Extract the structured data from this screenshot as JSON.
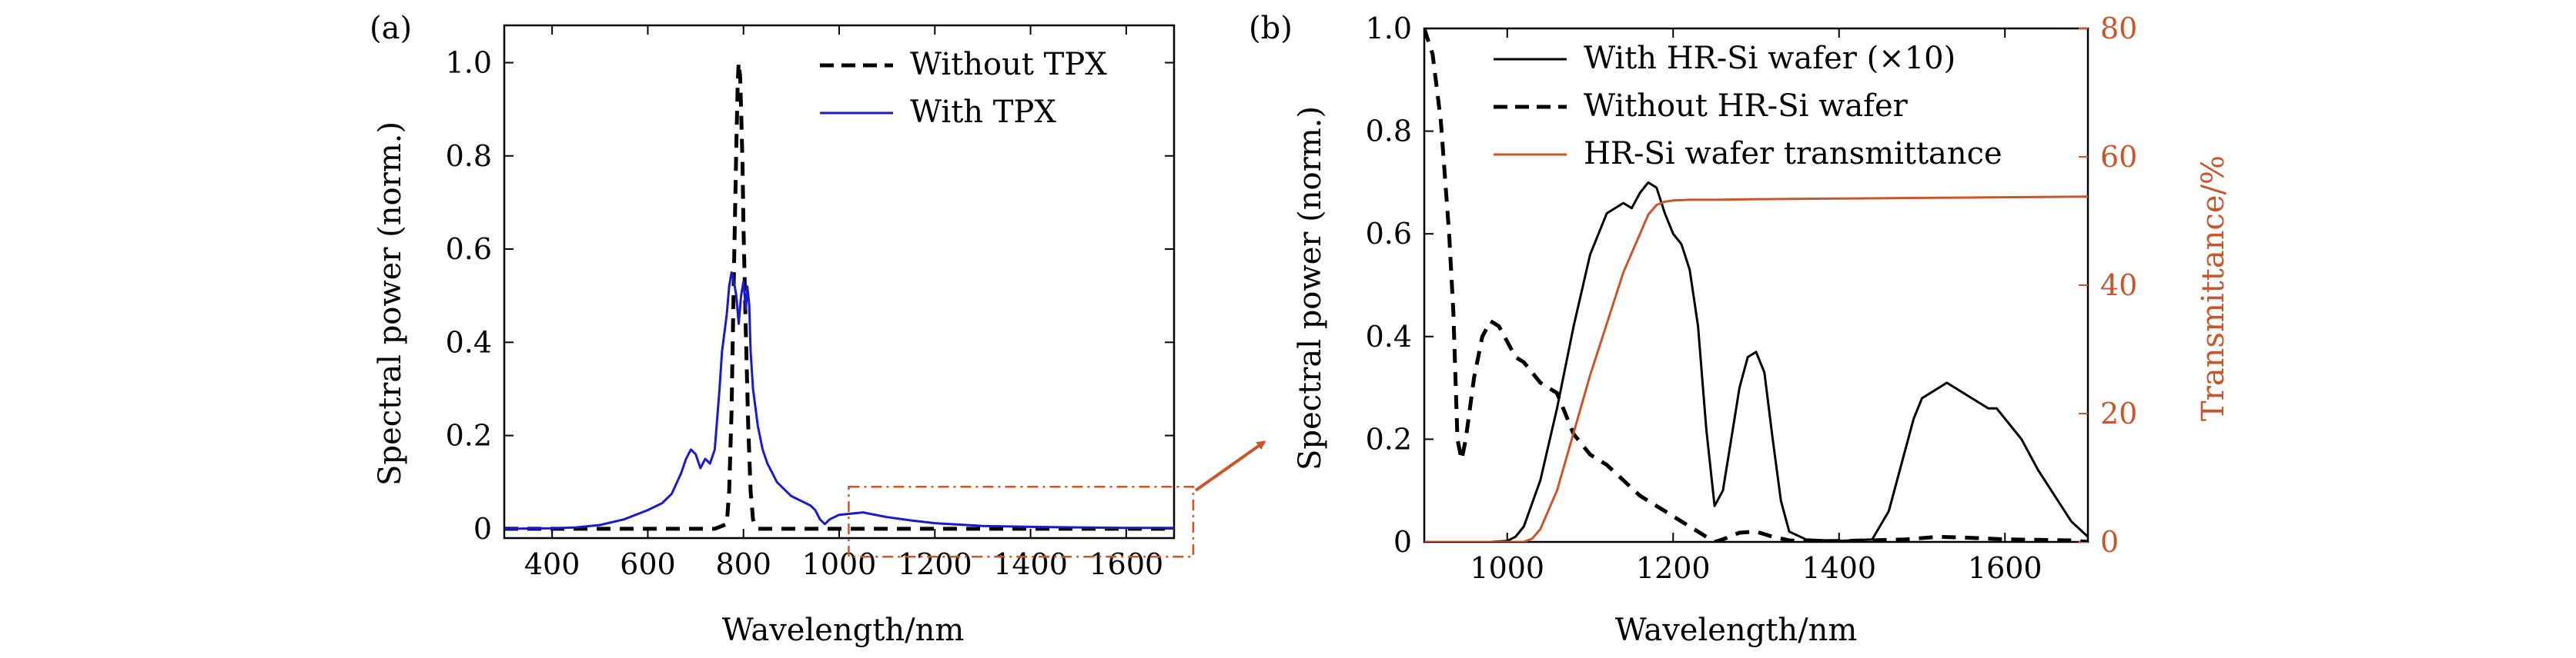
{
  "colors": {
    "black": "#000000",
    "blue": "#1a1acc",
    "orange": "#c8552b",
    "axis": "#000000"
  },
  "chart_data": [
    {
      "panel_label": "(a)",
      "type": "line",
      "xlabel": "Wavelength/nm",
      "ylabel": "Spectral power (norm.)",
      "xlim": [
        300,
        1700
      ],
      "ylim": [
        -0.02,
        1.08
      ],
      "xticks": [
        400,
        600,
        800,
        1000,
        1200,
        1400,
        1600
      ],
      "xtick_labels": [
        "400",
        "600",
        "800",
        "1000",
        "1200",
        "1400",
        "1600"
      ],
      "yticks": [
        0,
        0.2,
        0.4,
        0.6,
        0.8,
        1.0
      ],
      "ytick_labels": [
        "0",
        "0.2",
        "0.4",
        "0.6",
        "0.8",
        "1.0"
      ],
      "legend": "top-right",
      "zoom_region": {
        "x": [
          1020,
          1740
        ],
        "y": [
          -0.06,
          0.09
        ]
      },
      "series": [
        {
          "name": "Without TPX",
          "style": "dashed",
          "color": "black",
          "x": [
            300,
            740,
            765,
            770,
            775,
            780,
            785,
            788,
            790,
            793,
            795,
            798,
            800,
            805,
            810,
            815,
            820,
            825,
            830,
            900,
            1700
          ],
          "y": [
            0,
            0,
            0.01,
            0.08,
            0.25,
            0.55,
            0.82,
            0.96,
            1.0,
            0.97,
            0.9,
            0.78,
            0.65,
            0.42,
            0.22,
            0.08,
            0.02,
            0.005,
            0,
            0,
            0
          ]
        },
        {
          "name": "With TPX",
          "style": "solid",
          "color": "blue",
          "x": [
            300,
            400,
            450,
            500,
            550,
            600,
            630,
            650,
            670,
            680,
            690,
            700,
            710,
            720,
            730,
            740,
            750,
            755,
            760,
            765,
            770,
            775,
            780,
            785,
            790,
            795,
            800,
            805,
            808,
            812,
            815,
            820,
            830,
            840,
            850,
            860,
            870,
            880,
            890,
            900,
            910,
            920,
            930,
            940,
            950,
            960,
            970,
            980,
            1000,
            1050,
            1100,
            1150,
            1200,
            1300,
            1400,
            1500,
            1600,
            1700
          ],
          "y": [
            0,
            0.001,
            0.003,
            0.008,
            0.02,
            0.04,
            0.055,
            0.075,
            0.12,
            0.15,
            0.17,
            0.16,
            0.13,
            0.15,
            0.14,
            0.17,
            0.3,
            0.38,
            0.42,
            0.46,
            0.52,
            0.55,
            0.53,
            0.5,
            0.44,
            0.5,
            0.53,
            0.47,
            0.52,
            0.48,
            0.38,
            0.3,
            0.22,
            0.17,
            0.14,
            0.12,
            0.1,
            0.09,
            0.08,
            0.07,
            0.065,
            0.06,
            0.055,
            0.05,
            0.04,
            0.02,
            0.01,
            0.02,
            0.03,
            0.035,
            0.025,
            0.018,
            0.012,
            0.006,
            0.004,
            0.003,
            0.002,
            0.002
          ]
        }
      ]
    },
    {
      "panel_label": "(b)",
      "type": "line",
      "xlabel": "Wavelength/nm",
      "ylabel": "Spectral power (norm.)",
      "y2label": "Transmittance/%",
      "xlim": [
        900,
        1700
      ],
      "ylim": [
        0,
        1.0
      ],
      "y2lim": [
        0,
        80
      ],
      "xticks": [
        1000,
        1200,
        1400,
        1600
      ],
      "xtick_labels": [
        "1000",
        "1200",
        "1400",
        "1600"
      ],
      "yticks": [
        0,
        0.2,
        0.4,
        0.6,
        0.8,
        1.0
      ],
      "ytick_labels": [
        "0",
        "0.2",
        "0.4",
        "0.6",
        "0.8",
        "1.0"
      ],
      "y2ticks": [
        0,
        20,
        40,
        60,
        80
      ],
      "y2tick_labels": [
        "0",
        "20",
        "40",
        "60",
        "80"
      ],
      "legend": "top-right",
      "series": [
        {
          "name": "With HR-Si wafer (×10)",
          "style": "solid",
          "color": "black",
          "axis": "left",
          "x": [
            900,
            980,
            1000,
            1010,
            1020,
            1040,
            1060,
            1080,
            1100,
            1120,
            1140,
            1150,
            1160,
            1170,
            1180,
            1190,
            1200,
            1210,
            1220,
            1230,
            1240,
            1250,
            1260,
            1270,
            1280,
            1290,
            1300,
            1310,
            1320,
            1330,
            1340,
            1360,
            1400,
            1440,
            1460,
            1480,
            1490,
            1500,
            1510,
            1520,
            1530,
            1540,
            1550,
            1560,
            1570,
            1580,
            1590,
            1600,
            1620,
            1640,
            1660,
            1680,
            1700
          ],
          "y": [
            0,
            0,
            0.002,
            0.01,
            0.03,
            0.12,
            0.26,
            0.42,
            0.56,
            0.64,
            0.66,
            0.65,
            0.68,
            0.7,
            0.69,
            0.64,
            0.6,
            0.58,
            0.53,
            0.42,
            0.22,
            0.07,
            0.1,
            0.2,
            0.3,
            0.36,
            0.37,
            0.33,
            0.2,
            0.08,
            0.02,
            0.005,
            0.002,
            0.005,
            0.06,
            0.18,
            0.24,
            0.28,
            0.29,
            0.3,
            0.31,
            0.3,
            0.29,
            0.28,
            0.27,
            0.26,
            0.26,
            0.24,
            0.2,
            0.14,
            0.09,
            0.04,
            0.01
          ]
        },
        {
          "name": "Without HR-Si wafer",
          "style": "dashed",
          "color": "black",
          "axis": "left",
          "x": [
            900,
            910,
            920,
            930,
            935,
            940,
            945,
            950,
            960,
            970,
            980,
            990,
            1000,
            1010,
            1020,
            1030,
            1040,
            1050,
            1060,
            1070,
            1080,
            1100,
            1120,
            1140,
            1160,
            1180,
            1200,
            1220,
            1240,
            1250,
            1260,
            1280,
            1300,
            1320,
            1340,
            1360,
            1400,
            1440,
            1480,
            1520,
            1560,
            1600,
            1640,
            1680,
            1700
          ],
          "y": [
            1.0,
            0.95,
            0.82,
            0.6,
            0.45,
            0.2,
            0.16,
            0.2,
            0.32,
            0.4,
            0.43,
            0.42,
            0.39,
            0.36,
            0.35,
            0.33,
            0.31,
            0.3,
            0.29,
            0.25,
            0.21,
            0.17,
            0.15,
            0.12,
            0.09,
            0.07,
            0.05,
            0.03,
            0.01,
            0.0,
            0.005,
            0.018,
            0.02,
            0.01,
            0.003,
            0.001,
            0.002,
            0.003,
            0.005,
            0.01,
            0.008,
            0.005,
            0.004,
            0.003,
            0.0
          ]
        },
        {
          "name": "HR-Si wafer transmittance",
          "style": "solid",
          "color": "orange",
          "axis": "right",
          "x": [
            900,
            1020,
            1030,
            1040,
            1060,
            1080,
            1100,
            1120,
            1140,
            1160,
            1170,
            1180,
            1190,
            1200,
            1220,
            1250,
            1300,
            1400,
            1500,
            1600,
            1700
          ],
          "y": [
            0,
            0,
            0.5,
            2,
            8,
            17,
            26,
            34,
            42,
            48,
            51,
            52.5,
            53,
            53.2,
            53.3,
            53.3,
            53.4,
            53.5,
            53.6,
            53.7,
            53.8
          ]
        }
      ]
    }
  ]
}
